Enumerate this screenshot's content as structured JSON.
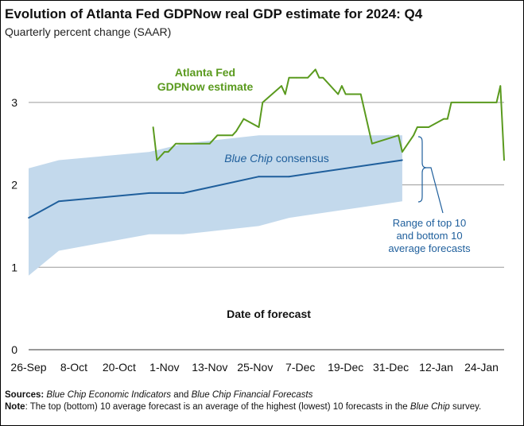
{
  "header": {
    "title": "Evolution of Atlanta Fed GDPNow real GDP estimate for 2024: Q4",
    "subtitle": "Quarterly percent change (SAAR)"
  },
  "footer": {
    "sources_label": "Sources:",
    "sources_part1": "Blue Chip Economic Indicators",
    "sources_part2": " and ",
    "sources_part3": "Blue Chip Financial Forecasts",
    "note_label": "Note",
    "note_part1": ": The top (bottom) 10 average forecast is an average of the highest (lowest) 10 forecasts in the ",
    "note_part2": "Blue Chip",
    "note_part3": " survey."
  },
  "colors": {
    "gdpnow": "#5a9a1e",
    "bluechip": "#1f5f9c",
    "band": "#c3d9ec",
    "grid": "#9a9a9a"
  },
  "chart_data": {
    "type": "line",
    "xlabel": "Date of forecast",
    "ylabel": "",
    "xlim": [
      "2024-09-26",
      "2025-01-30"
    ],
    "ylim": [
      0,
      3.5
    ],
    "yticks": [
      0,
      1,
      2,
      3
    ],
    "xtick_labels": [
      "26-Sep",
      "8-Oct",
      "20-Oct",
      "1-Nov",
      "13-Nov",
      "25-Nov",
      "7-Dec",
      "19-Dec",
      "31-Dec",
      "12-Jan",
      "24-Jan"
    ],
    "xtick_dates": [
      "2024-09-26",
      "2024-10-08",
      "2024-10-20",
      "2024-11-01",
      "2024-11-13",
      "2024-11-25",
      "2024-12-07",
      "2024-12-19",
      "2024-12-31",
      "2025-01-12",
      "2025-01-24"
    ],
    "grid": true,
    "annotations": {
      "gdpnow_label_line1": "Atlanta Fed",
      "gdpnow_label_line2": "GDPNow estimate",
      "bluechip_label_italic": "Blue Chip",
      "bluechip_label_rest": " consensus",
      "range_label_line1": "Range of top 10",
      "range_label_line2": "and bottom 10",
      "range_label_line3": "average forecasts"
    },
    "series": [
      {
        "name": "Atlanta Fed GDPNow estimate",
        "x": [
          "2024-10-29",
          "2024-10-30",
          "2024-11-01",
          "2024-11-02",
          "2024-11-04",
          "2024-11-05",
          "2024-11-08",
          "2024-11-13",
          "2024-11-15",
          "2024-11-19",
          "2024-11-20",
          "2024-11-22",
          "2024-11-26",
          "2024-11-27",
          "2024-12-02",
          "2024-12-03",
          "2024-12-04",
          "2024-12-06",
          "2024-12-09",
          "2024-12-11",
          "2024-12-12",
          "2024-12-13",
          "2024-12-17",
          "2024-12-18",
          "2024-12-19",
          "2024-12-23",
          "2024-12-26",
          "2025-01-02",
          "2025-01-03",
          "2025-01-06",
          "2025-01-07",
          "2025-01-09",
          "2025-01-10",
          "2025-01-14",
          "2025-01-15",
          "2025-01-16",
          "2025-01-28",
          "2025-01-29",
          "2025-01-30"
        ],
        "values": [
          2.7,
          2.3,
          2.4,
          2.4,
          2.5,
          2.5,
          2.5,
          2.5,
          2.6,
          2.6,
          2.65,
          2.8,
          2.7,
          3.0,
          3.2,
          3.1,
          3.3,
          3.3,
          3.3,
          3.4,
          3.3,
          3.3,
          3.1,
          3.2,
          3.1,
          3.1,
          2.5,
          2.6,
          2.4,
          2.6,
          2.7,
          2.7,
          2.7,
          2.8,
          2.8,
          3.0,
          3.0,
          3.2,
          2.3
        ]
      },
      {
        "name": "Blue Chip consensus",
        "x": [
          "2024-09-26",
          "2024-10-04",
          "2024-10-28",
          "2024-11-06",
          "2024-11-26",
          "2024-12-04",
          "2025-01-03"
        ],
        "values": [
          1.6,
          1.8,
          1.9,
          1.9,
          2.1,
          2.1,
          2.3
        ]
      },
      {
        "name": "Range of top 10 and bottom 10 average forecasts",
        "x": [
          "2024-09-26",
          "2024-10-04",
          "2024-10-28",
          "2024-11-06",
          "2024-11-26",
          "2024-12-04",
          "2025-01-03"
        ],
        "upper": [
          2.2,
          2.3,
          2.4,
          2.5,
          2.6,
          2.6,
          2.6
        ],
        "lower": [
          0.9,
          1.2,
          1.4,
          1.4,
          1.5,
          1.6,
          1.8
        ]
      }
    ]
  }
}
